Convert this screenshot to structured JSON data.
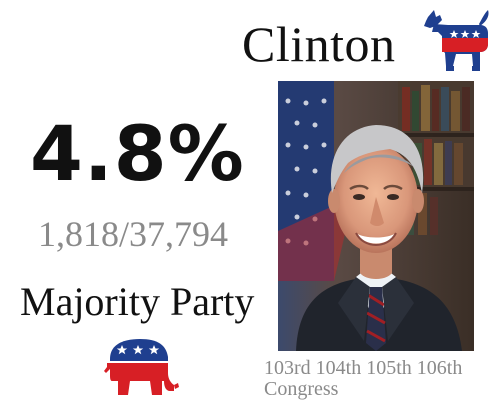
{
  "president": {
    "name": "Clinton"
  },
  "stats": {
    "percentage": "4.8%",
    "fraction": "1,818/37,794"
  },
  "majority": {
    "label": "Majority Party"
  },
  "congress": {
    "sessions": "103rd 104th 105th 106th",
    "label": "Congress"
  },
  "icons": {
    "president_party": "democratic-donkey-icon",
    "majority_party": "republican-elephant-icon"
  },
  "colors": {
    "democrat_blue": "#1f3f8f",
    "republican_red": "#d71f25",
    "text_primary": "#111111",
    "text_secondary": "#8a8a8a"
  }
}
